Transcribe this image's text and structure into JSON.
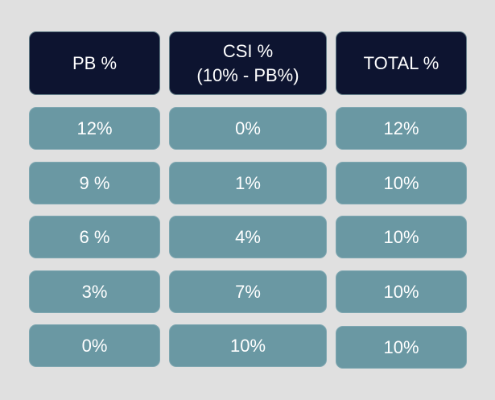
{
  "headers": {
    "pb": "PB %",
    "csi_line1": "CSI %",
    "csi_line2": "(10% - PB%)",
    "total": "TOTAL %"
  },
  "rows": [
    {
      "pb": "12%",
      "csi": "0%",
      "total": "12%"
    },
    {
      "pb": "9 %",
      "csi": "1%",
      "total": "10%"
    },
    {
      "pb": "6 %",
      "csi": "4%",
      "total": "10%"
    },
    {
      "pb": "3%",
      "csi": "7%",
      "total": "10%"
    },
    {
      "pb": "0%",
      "csi": "10%",
      "total": "10%"
    }
  ]
}
